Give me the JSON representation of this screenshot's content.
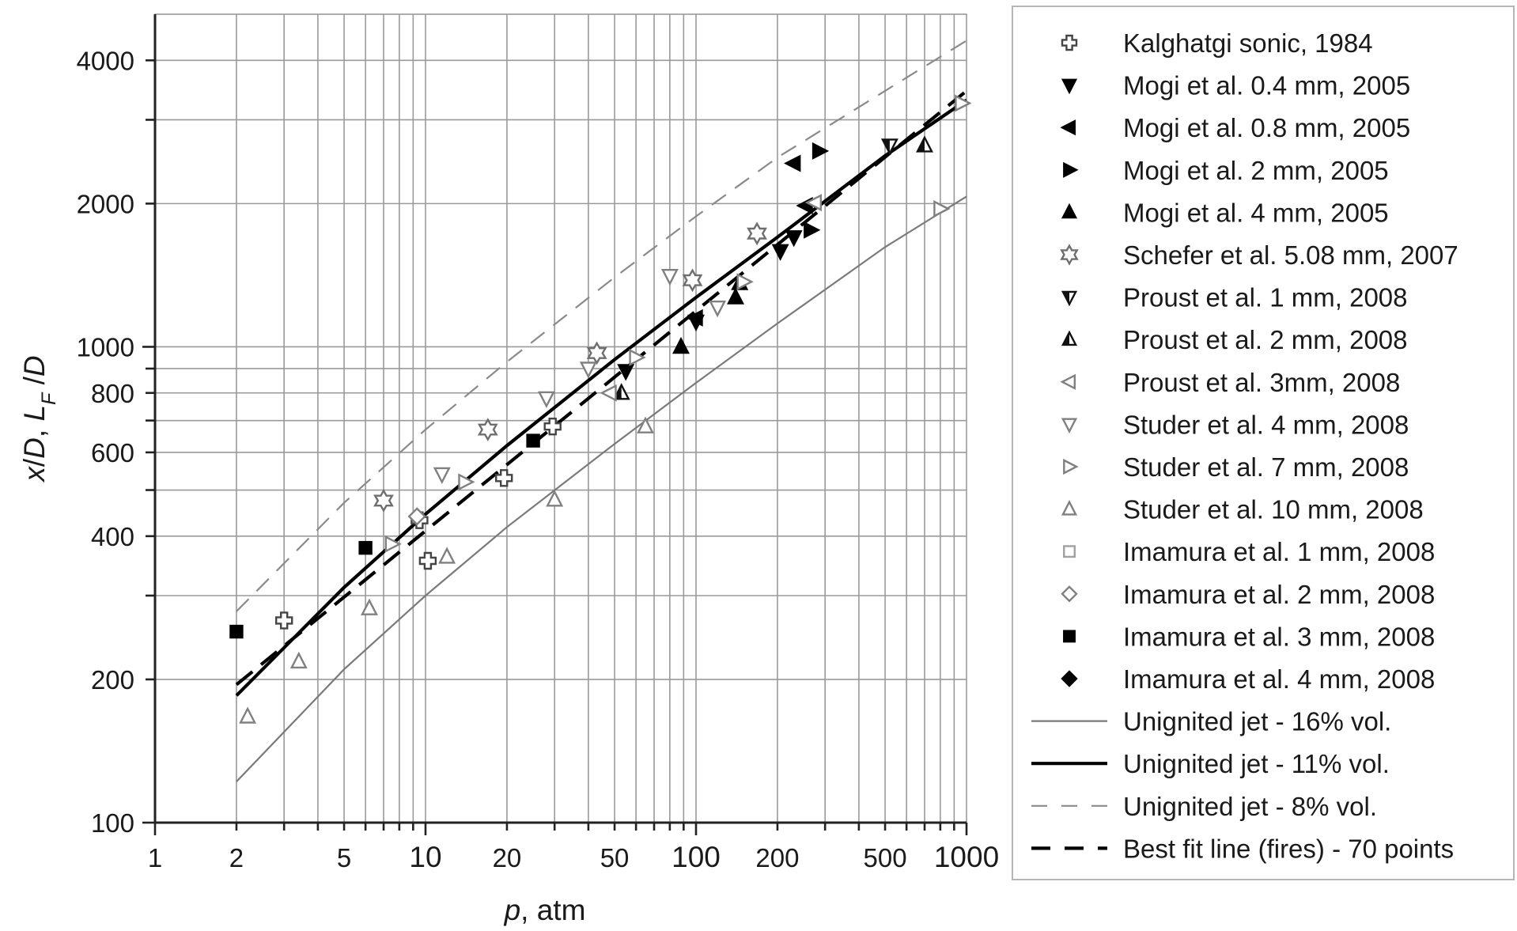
{
  "chart_data": {
    "type": "scatter",
    "title": "",
    "xlabel": {
      "italic": "p",
      "rest": ", atm"
    },
    "ylabel": {
      "parts": [
        {
          "text": "x",
          "italic": true
        },
        {
          "text": "/",
          "italic": false
        },
        {
          "text": "D",
          "italic": true
        },
        {
          "text": ", ",
          "italic": false
        },
        {
          "text": "L",
          "italic": true
        },
        {
          "text": "F",
          "italic": true,
          "sub": true
        },
        {
          "text": " /",
          "italic": false
        },
        {
          "text": "D",
          "italic": true
        }
      ]
    },
    "x_scale": "log",
    "y_scale": "log",
    "xlim": [
      1,
      1000
    ],
    "ylim": [
      100,
      5000
    ],
    "grid": true,
    "legend_position": "right outside",
    "x_ticks": [
      {
        "value": 1,
        "label": "1"
      },
      {
        "value": 2,
        "label": "2"
      },
      {
        "value": 5,
        "label": "5"
      },
      {
        "value": 10,
        "label": "10"
      },
      {
        "value": 20,
        "label": "20"
      },
      {
        "value": 50,
        "label": "50"
      },
      {
        "value": 100,
        "label": "100"
      },
      {
        "value": 200,
        "label": "200"
      },
      {
        "value": 500,
        "label": "500"
      },
      {
        "value": 1000,
        "label": "1000"
      }
    ],
    "y_ticks": [
      {
        "value": 100,
        "label": "100"
      },
      {
        "value": 200,
        "label": "200"
      },
      {
        "value": 400,
        "label": "400"
      },
      {
        "value": 600,
        "label": "600"
      },
      {
        "value": 800,
        "label": "800"
      },
      {
        "value": 1000,
        "label": "1000"
      },
      {
        "value": 2000,
        "label": "2000"
      },
      {
        "value": 4000,
        "label": "4000"
      }
    ],
    "scatter_series": [
      {
        "name": "Kalghatgi sonic, 1984",
        "marker": "cross-open",
        "color": "#444444",
        "points": [
          [
            3,
            266
          ],
          [
            9.5,
            432
          ],
          [
            10.2,
            355
          ],
          [
            19.5,
            530
          ],
          [
            29.5,
            680
          ]
        ]
      },
      {
        "name": "Mogi et al. 0.4 mm, 2005",
        "marker": "triangle-down-filled",
        "color": "#000000",
        "points": [
          [
            55,
            890
          ],
          [
            100,
            1130
          ],
          [
            205,
            1590
          ],
          [
            230,
            1700
          ]
        ]
      },
      {
        "name": "Mogi et al. 0.8 mm, 2005",
        "marker": "triangle-left-filled",
        "color": "#000000",
        "points": [
          [
            100,
            1150
          ],
          [
            230,
            2430
          ],
          [
            255,
            1980
          ]
        ]
      },
      {
        "name": "Mogi et al. 2 mm, 2005",
        "marker": "triangle-right-filled",
        "color": "#000000",
        "points": [
          [
            285,
            2580
          ],
          [
            265,
            1760
          ]
        ]
      },
      {
        "name": "Mogi et al. 4 mm, 2005",
        "marker": "triangle-up-filled",
        "color": "#000000",
        "points": [
          [
            88,
            1000
          ],
          [
            140,
            1270
          ],
          [
            145,
            1360
          ]
        ]
      },
      {
        "name": "Schefer et al. 5.08 mm, 2007",
        "marker": "star-open",
        "color": "#6e6e6e",
        "points": [
          [
            7,
            475
          ],
          [
            17,
            670
          ],
          [
            43,
            970
          ],
          [
            97,
            1380
          ],
          [
            168,
            1730
          ]
        ]
      },
      {
        "name": "Proust et al. 1 mm, 2008",
        "marker": "triangle-down-half",
        "color": "#111111",
        "points": [
          [
            520,
            2650
          ]
        ]
      },
      {
        "name": "Proust et al. 2 mm, 2008",
        "marker": "triangle-up-half",
        "color": "#111111",
        "points": [
          [
            53,
            800
          ],
          [
            700,
            2650
          ]
        ]
      },
      {
        "name": "Proust et al. 3mm, 2008",
        "marker": "triangle-left-open",
        "color": "#808080",
        "points": [
          [
            48,
            800
          ],
          [
            275,
            2010
          ]
        ]
      },
      {
        "name": "Studer et al. 4 mm, 2008",
        "marker": "triangle-down-open",
        "color": "#808080",
        "points": [
          [
            11.5,
            540
          ],
          [
            28,
            780
          ],
          [
            40,
            900
          ],
          [
            80,
            1410
          ],
          [
            120,
            1210
          ]
        ]
      },
      {
        "name": "Studer et al. 7 mm, 2008",
        "marker": "triangle-right-open",
        "color": "#808080",
        "points": [
          [
            7.5,
            385
          ],
          [
            14,
            520
          ],
          [
            60,
            950
          ],
          [
            150,
            1370
          ],
          [
            800,
            1950
          ],
          [
            960,
            3250
          ]
        ]
      },
      {
        "name": "Studer et al. 10 mm, 2008",
        "marker": "triangle-up-open",
        "color": "#808080",
        "points": [
          [
            2.2,
            167
          ],
          [
            3.4,
            218
          ],
          [
            6.2,
            282
          ],
          [
            12,
            362
          ],
          [
            30,
            477
          ],
          [
            65,
            680
          ]
        ]
      },
      {
        "name": "Imamura et al. 1 mm, 2008",
        "marker": "square-open",
        "color": "#a0a0a0",
        "points": []
      },
      {
        "name": "Imamura et al. 2 mm, 2008",
        "marker": "diamond-open",
        "color": "#808080",
        "points": [
          [
            9.3,
            440
          ]
        ]
      },
      {
        "name": "Imamura et al. 3 mm, 2008",
        "marker": "square-filled",
        "color": "#000000",
        "points": [
          [
            2,
            252
          ],
          [
            6,
            378
          ],
          [
            25,
            635
          ]
        ]
      },
      {
        "name": "Imamura et al. 4 mm, 2008",
        "marker": "diamond-filled",
        "color": "#000000",
        "points": []
      }
    ],
    "line_series": [
      {
        "name": "Unignited jet - 16% vol.",
        "style": "solid",
        "color": "#7a7a7a",
        "weight": "thin",
        "points": [
          [
            2,
            122
          ],
          [
            5,
            210
          ],
          [
            10,
            300
          ],
          [
            20,
            418
          ],
          [
            50,
            625
          ],
          [
            100,
            840
          ],
          [
            200,
            1120
          ],
          [
            500,
            1620
          ],
          [
            1000,
            2070
          ]
        ]
      },
      {
        "name": "Unignited jet - 11% vol.",
        "style": "solid",
        "color": "#000000",
        "weight": "thick",
        "points": [
          [
            2,
            185
          ],
          [
            5,
            312
          ],
          [
            10,
            445
          ],
          [
            20,
            620
          ],
          [
            50,
            940
          ],
          [
            100,
            1270
          ],
          [
            200,
            1700
          ],
          [
            500,
            2520
          ],
          [
            1000,
            3300
          ]
        ]
      },
      {
        "name": "Unignited jet - 8% vol.",
        "style": "dashed",
        "color": "#8a8a8a",
        "weight": "thin",
        "points": [
          [
            2,
            278
          ],
          [
            5,
            470
          ],
          [
            10,
            670
          ],
          [
            20,
            930
          ],
          [
            50,
            1400
          ],
          [
            100,
            1880
          ],
          [
            200,
            2500
          ],
          [
            500,
            3450
          ],
          [
            1000,
            4400
          ]
        ]
      },
      {
        "name": "Best fit line (fires) - 70 points",
        "style": "dashed",
        "color": "#000000",
        "weight": "thick",
        "points": [
          [
            2,
            195
          ],
          [
            1000,
            3450
          ]
        ]
      }
    ]
  }
}
